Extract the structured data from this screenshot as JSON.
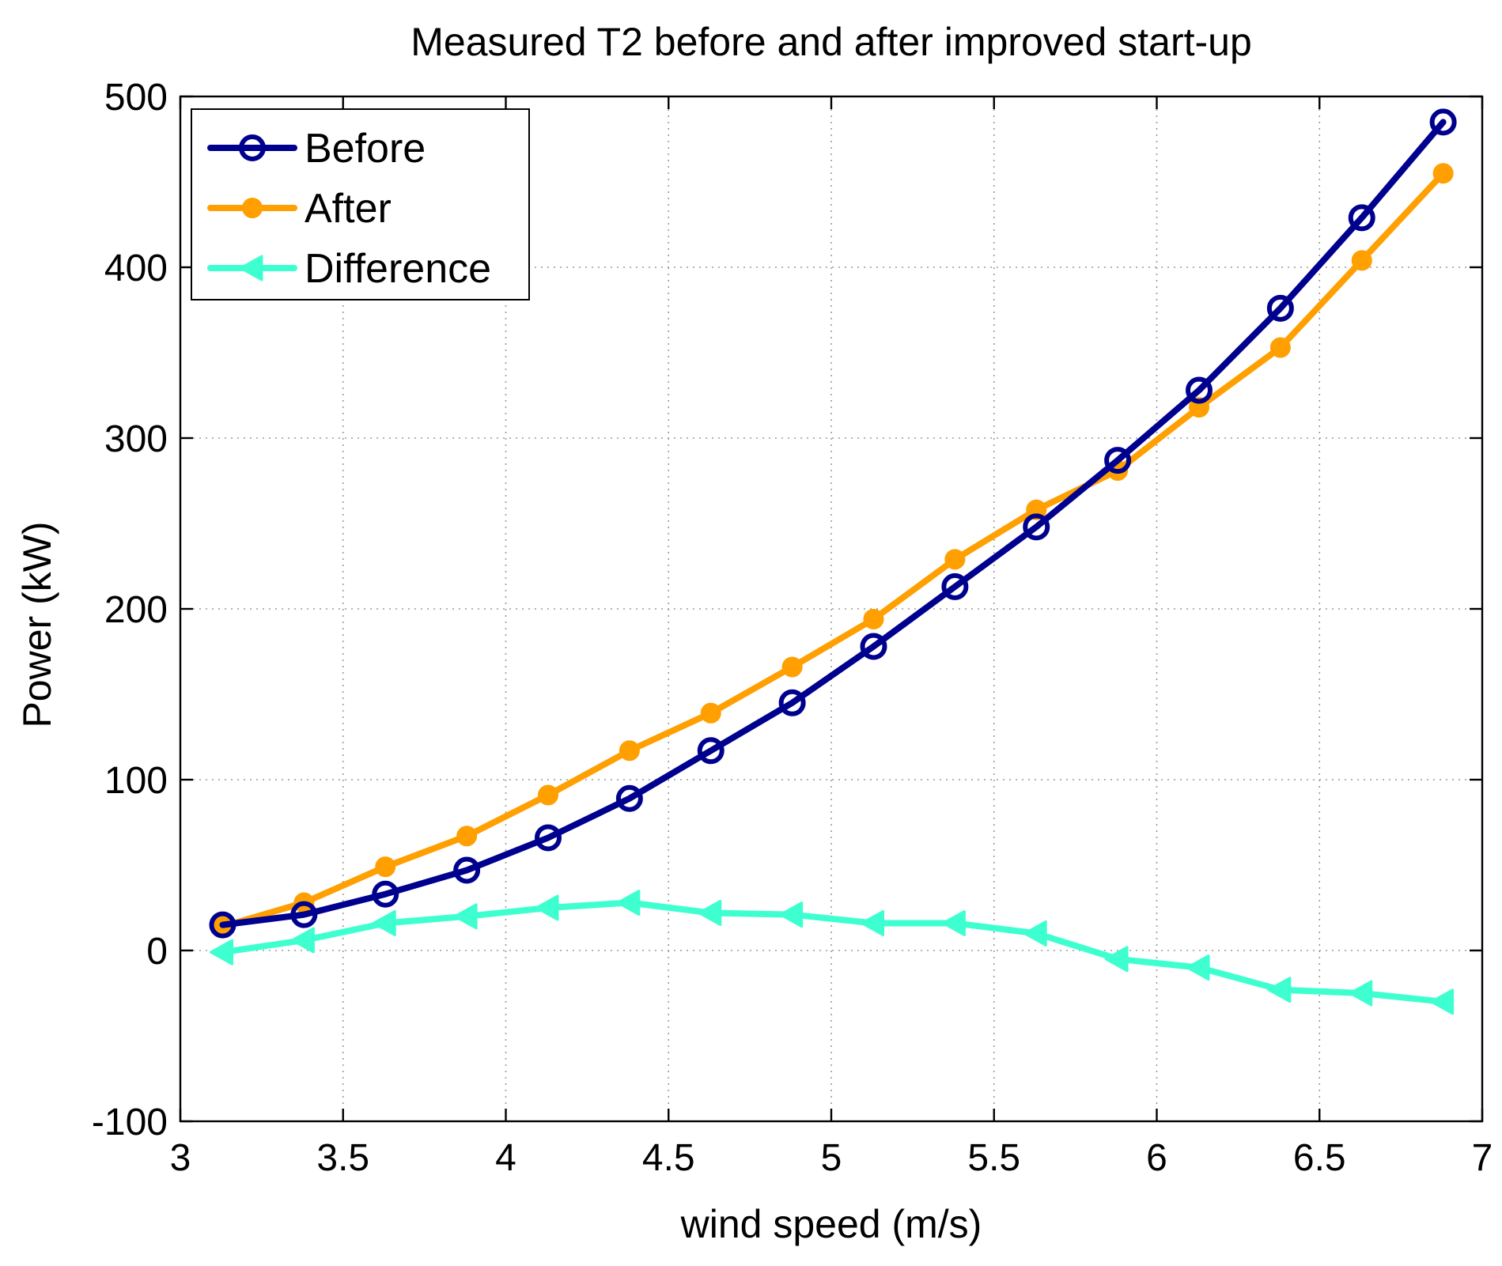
{
  "chart_data": {
    "type": "line",
    "title": "Measured T2 before and after improved start-up",
    "xlabel": "wind speed (m/s)",
    "ylabel": "Power (kW)",
    "xlim": [
      3,
      7
    ],
    "ylim": [
      -100,
      500
    ],
    "xticks": [
      3,
      3.5,
      4,
      4.5,
      5,
      5.5,
      6,
      6.5,
      7
    ],
    "xtick_labels": [
      "3",
      "3.5",
      "4",
      "4.5",
      "5",
      "5.5",
      "6",
      "6.5",
      "7"
    ],
    "yticks": [
      -100,
      0,
      100,
      200,
      300,
      400,
      500
    ],
    "ytick_labels": [
      "-100",
      "0",
      "100",
      "200",
      "300",
      "400",
      "500"
    ],
    "grid": true,
    "legend_position": "top-left",
    "x": [
      3.13,
      3.38,
      3.63,
      3.88,
      4.13,
      4.38,
      4.63,
      4.88,
      5.13,
      5.38,
      5.63,
      5.88,
      6.13,
      6.38,
      6.63,
      6.88
    ],
    "series": [
      {
        "name": "Before",
        "color": "#00008f",
        "marker": "open-circle",
        "values": [
          15,
          21,
          33,
          47,
          66,
          89,
          117,
          145,
          178,
          213,
          248,
          287,
          328,
          376,
          429,
          485
        ]
      },
      {
        "name": "After",
        "color": "#ff9f00",
        "marker": "filled-circle",
        "values": [
          14,
          28,
          49,
          67,
          91,
          117,
          139,
          166,
          194,
          229,
          258,
          281,
          318,
          353,
          404,
          455
        ]
      },
      {
        "name": "Difference",
        "color": "#3dffcf",
        "marker": "left-triangle",
        "values": [
          -1,
          6,
          16,
          20,
          25,
          28,
          22,
          21,
          16,
          16,
          10,
          -5,
          -10,
          -23,
          -25,
          -30
        ]
      }
    ]
  }
}
